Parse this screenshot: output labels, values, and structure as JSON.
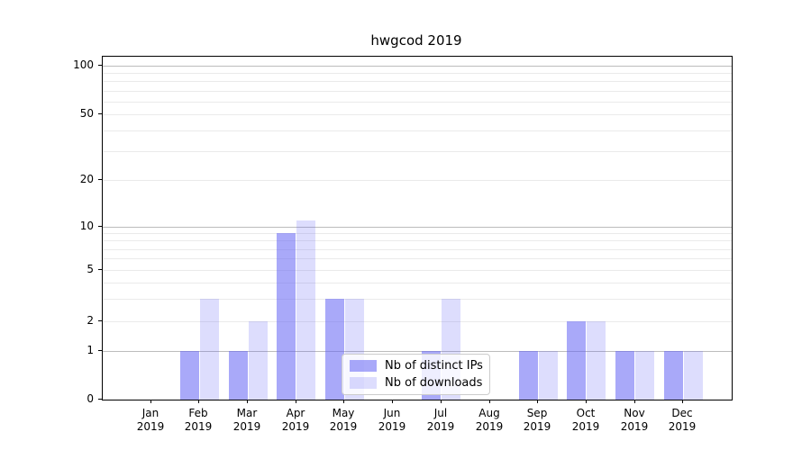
{
  "chart_data": {
    "type": "bar",
    "title": "hwgcod 2019",
    "categories": [
      "Jan",
      "Feb",
      "Mar",
      "Apr",
      "May",
      "Jun",
      "Jul",
      "Aug",
      "Sep",
      "Oct",
      "Nov",
      "Dec"
    ],
    "category_year": "2019",
    "series": [
      {
        "name": "Nb of distinct IPs",
        "color": "#6363f4",
        "opacity": 0.55,
        "values": [
          0,
          1,
          1,
          9,
          3,
          0,
          1,
          0,
          1,
          2,
          1,
          1
        ]
      },
      {
        "name": "Nb of downloads",
        "color": "#6363f4",
        "opacity": 0.22,
        "values": [
          0,
          3,
          2,
          11,
          3,
          0,
          3,
          0,
          1,
          2,
          1,
          1
        ]
      }
    ],
    "y_ticks": [
      0,
      1,
      2,
      5,
      10,
      20,
      50,
      100
    ],
    "y_major_gridlines": [
      1,
      10,
      100
    ],
    "y_minor_gridlines": [
      2,
      3,
      4,
      5,
      6,
      7,
      8,
      9,
      20,
      30,
      40,
      50,
      60,
      70,
      80,
      90
    ],
    "y_scale": "symlog",
    "grid": "horizontal",
    "legend_position": "lower-center inside plot",
    "colors": {
      "axis": "#000000",
      "major_grid": "#bcbcbc",
      "minor_grid": "#eaeaea",
      "background": "#ffffff"
    }
  }
}
